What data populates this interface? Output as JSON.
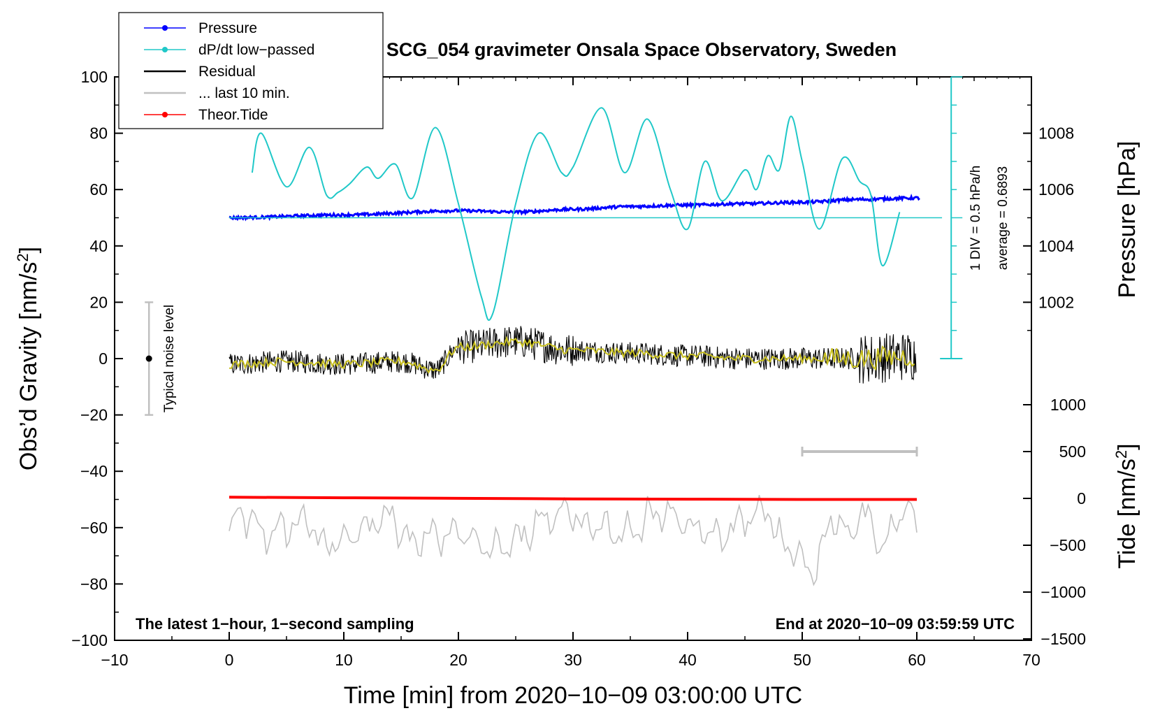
{
  "chart_data": {
    "type": "line",
    "title": "SCG_054 gravimeter Onsala Space Observatory, Sweden",
    "xlabel": "Time [min] from 2020−10−09 03:00:00 UTC",
    "ylabel_left": "Obs’d Gravity [nm/s²]",
    "ylabel_left_main": "Obs’d Gravity [nm/s",
    "ylabel_left_sup": "2",
    "ylabel_left_end": "]",
    "ylabel_right_pressure": "Pressure [hPa]",
    "ylabel_right_tide": "Tide [nm/s²]",
    "ylabel_right_tide_main": "Tide [nm/s",
    "ylabel_right_tide_sup": "2",
    "ylabel_right_tide_end": "]",
    "xlim": [
      -10,
      70
    ],
    "ylim_left": [
      -100,
      100
    ],
    "x_ticks": [
      "−10",
      "0",
      "10",
      "20",
      "30",
      "40",
      "50",
      "60",
      "70"
    ],
    "y_ticks_left": [
      "100",
      "80",
      "60",
      "40",
      "20",
      "0",
      "−20",
      "−40",
      "−60",
      "−80",
      "−100"
    ],
    "pressure_ticks": [
      "1008",
      "1006",
      "1004",
      "1002"
    ],
    "tide_ticks": [
      "1000",
      "500",
      "0",
      "−500",
      "−1000",
      "−1500"
    ],
    "legend": [
      {
        "label": "Pressure",
        "color": "#0000ff",
        "marker": true
      },
      {
        "label": "dP/dt low−passed",
        "color": "#20c8c8",
        "marker": true
      },
      {
        "label": "Residual",
        "color": "#000000",
        "marker": false
      },
      {
        "label": "... last 10 min.",
        "color": "#c0c0c0",
        "marker": false
      },
      {
        "label": "Theor.Tide",
        "color": "#ff0000",
        "marker": true
      }
    ],
    "pressure_scale_note": "1 DIV = 0.5 hPa/h",
    "pressure_average_note": "average = 0.6893",
    "noise_label": "Typical noise level",
    "noise_bar": {
      "x": -7,
      "center": 0,
      "low": -20,
      "high": 20
    },
    "last10_bar": {
      "x_start": 50,
      "x_end": 60,
      "y": -33
    },
    "bottom_left_note": "The latest 1−hour, 1−second sampling",
    "bottom_right_note": "End at 2020−10−09 03:59:59 UTC",
    "series": {
      "pressure": {
        "name": "Pressure",
        "x": [
          0,
          10,
          20,
          25,
          30,
          35,
          40,
          45,
          50,
          55,
          60
        ],
        "y": [
          50,
          51,
          52.5,
          52,
          53,
          54,
          54.5,
          55,
          55.5,
          56.5,
          57
        ]
      },
      "dpdt": {
        "name": "dP/dt low−passed",
        "x": [
          2,
          2.8,
          5,
          7,
          8.5,
          9.5,
          10.5,
          12,
          13,
          14.5,
          16,
          18,
          20,
          22,
          23,
          25,
          27,
          29,
          30,
          32.5,
          34.5,
          36.5,
          38.5,
          40,
          41.5,
          43,
          45,
          46,
          47,
          48,
          49,
          50,
          51.5,
          53.5,
          55,
          56,
          57,
          58.5
        ],
        "y": [
          66,
          80,
          61,
          75,
          58,
          59,
          62,
          68,
          64,
          69,
          57,
          82,
          55,
          22,
          16,
          55,
          80,
          66,
          68,
          89,
          66,
          85,
          60,
          46,
          70,
          56,
          67,
          60,
          72,
          67,
          86,
          70,
          46,
          71,
          63,
          58,
          33,
          52
        ]
      },
      "residual": {
        "name": "Residual",
        "x": [
          0,
          5,
          10,
          15,
          18,
          20,
          25,
          30,
          35,
          40,
          45,
          50,
          55,
          60
        ],
        "y": [
          -2,
          -1,
          -2,
          -1,
          -4,
          4,
          6,
          3,
          2,
          1,
          0,
          0,
          0,
          1
        ]
      },
      "tide": {
        "name": "Theor.Tide",
        "x": [
          0,
          10,
          20,
          30,
          40,
          50,
          60
        ],
        "y": [
          -49.2,
          -49.4,
          -49.6,
          -49.8,
          -49.9,
          -50,
          -50
        ]
      },
      "last10": {
        "name": "... last 10 min.",
        "x": [
          0,
          1,
          3,
          7,
          8,
          9,
          14,
          16,
          20,
          23,
          29,
          32,
          34,
          38,
          43,
          45,
          47,
          48,
          51,
          53,
          54,
          55,
          57,
          59,
          60
        ],
        "y": [
          -62,
          -55,
          -62,
          -58,
          -65,
          -66,
          -56,
          -64,
          -62,
          -68,
          -55,
          -60,
          -62,
          -55,
          -63,
          -57,
          -54,
          -64,
          -75,
          -55,
          -65,
          -54,
          -67,
          -53,
          -58
        ]
      }
    }
  }
}
